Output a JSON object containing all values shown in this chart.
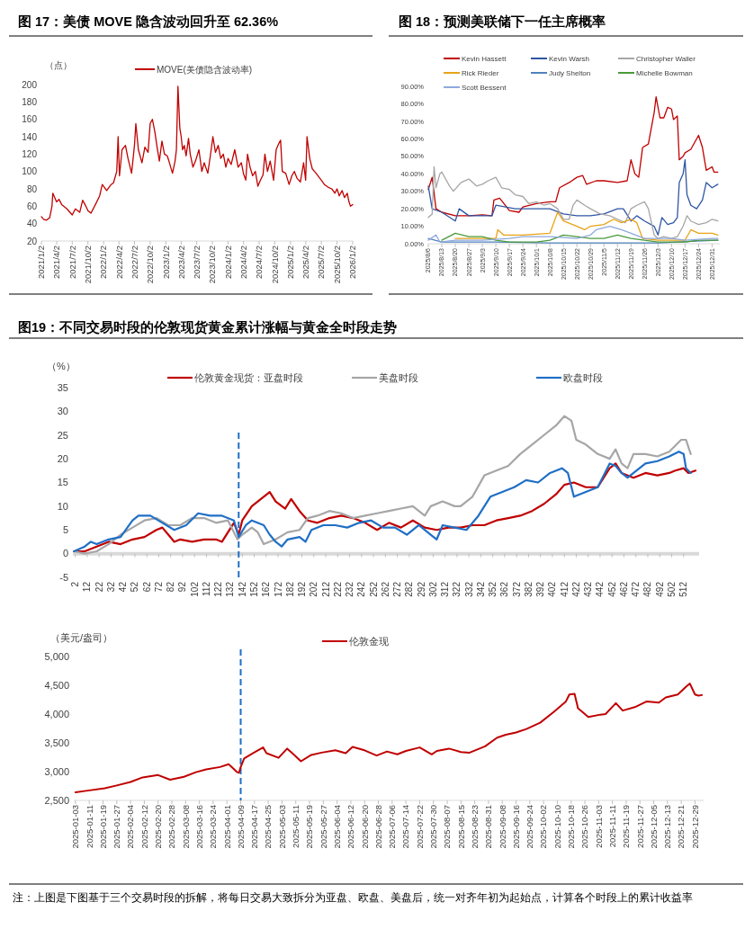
{
  "chart_data": [
    {
      "type": "line",
      "title": "图 17：美债 MOVE 隐含波动回升至 62.36%",
      "ylabel": "（点）",
      "legend": "top",
      "x": [
        "2021-01-02",
        "2021-01-15",
        "2021-02-01",
        "2021-02-20",
        "2021-03-05",
        "2021-03-10",
        "2021-04-01",
        "2021-04-15",
        "2021-05-01",
        "2021-06-01",
        "2021-07-02",
        "2021-07-20",
        "2021-08-15",
        "2021-09-01",
        "2021-09-20",
        "2021-10-02",
        "2021-10-20",
        "2021-11-15",
        "2021-12-10",
        "2021-12-25",
        "2022-01-20",
        "2022-02-15",
        "2022-03-01",
        "2022-03-20",
        "2022-03-28",
        "2022-04-05",
        "2022-04-20",
        "2022-05-10",
        "2022-05-25",
        "2022-06-15",
        "2022-07-02",
        "2022-07-10",
        "2022-07-25",
        "2022-08-15",
        "2022-09-01",
        "2022-09-20",
        "2022-10-02",
        "2022-10-15",
        "2022-10-30",
        "2022-11-10",
        "2022-11-25",
        "2022-12-10",
        "2022-12-25",
        "2023-01-10",
        "2023-01-20",
        "2023-02-10",
        "2023-02-25",
        "2023-03-05",
        "2023-03-14",
        "2023-03-25",
        "2023-04-02",
        "2023-04-10",
        "2023-04-20",
        "2023-05-01",
        "2023-05-15",
        "2023-05-25",
        "2023-06-10",
        "2023-06-25",
        "2023-07-15",
        "2023-08-01",
        "2023-08-15",
        "2023-09-05",
        "2023-09-20",
        "2023-10-05",
        "2023-10-20",
        "2023-11-05",
        "2023-11-20",
        "2023-12-05",
        "2023-12-20",
        "2024-01-02",
        "2024-01-20",
        "2024-02-10",
        "2024-03-01",
        "2024-03-20",
        "2024-04-02",
        "2024-04-15",
        "2024-04-25",
        "2024-05-10",
        "2024-05-25",
        "2024-06-10",
        "2024-06-25",
        "2024-07-10",
        "2024-07-25",
        "2024-08-05",
        "2024-08-20",
        "2024-09-05",
        "2024-09-25",
        "2024-10-10",
        "2024-10-25",
        "2024-11-05",
        "2024-11-15",
        "2024-12-05",
        "2024-12-25",
        "2025-01-10",
        "2025-01-25",
        "2025-02-10",
        "2025-03-01",
        "2025-03-20",
        "2025-04-01",
        "2025-04-09",
        "2025-04-25",
        "2025-05-10",
        "2025-06-01",
        "2025-07-02",
        "2025-07-20",
        "2025-08-10",
        "2025-09-01",
        "2025-09-20",
        "2025-10-02",
        "2025-10-15",
        "2025-11-01",
        "2025-11-15",
        "2025-12-01",
        "2025-12-10",
        "2025-12-20",
        "2026-01-02"
      ],
      "series": [
        {
          "name": "MOVE(美债隐含波动率)",
          "color": "#c00000",
          "values": [
            48,
            45,
            44,
            47,
            60,
            75,
            65,
            68,
            62,
            57,
            50,
            57,
            53,
            67,
            60,
            55,
            52,
            62,
            72,
            85,
            78,
            85,
            87,
            100,
            140,
            95,
            125,
            130,
            115,
            98,
            130,
            155,
            125,
            110,
            128,
            122,
            155,
            160,
            145,
            130,
            112,
            135,
            120,
            118,
            112,
            98,
            112,
            125,
            198,
            150,
            140,
            125,
            130,
            118,
            138,
            120,
            105,
            112,
            125,
            100,
            110,
            98,
            118,
            140,
            122,
            130,
            115,
            120,
            105,
            115,
            108,
            125,
            105,
            110,
            97,
            90,
            120,
            105,
            95,
            100,
            83,
            90,
            96,
            120,
            100,
            112,
            90,
            125,
            132,
            136,
            100,
            98,
            85,
            95,
            100,
            92,
            88,
            110,
            90,
            140,
            115,
            103,
            98,
            90,
            85,
            82,
            80,
            75,
            80,
            72,
            78,
            70,
            75,
            66,
            60,
            62
          ]
        }
      ],
      "xlim": [
        "2021-01-02",
        "2026-01-02"
      ],
      "xticks": [
        {
          "value": "2021-01-02",
          "label": "2021/1/2"
        },
        {
          "value": "2021-04-02",
          "label": "2021/4/2"
        },
        {
          "value": "2021-07-02",
          "label": "2021/7/2"
        },
        {
          "value": "2021-10-02",
          "label": "2021/10/2"
        },
        {
          "value": "2022-01-02",
          "label": "2022/1/2"
        },
        {
          "value": "2022-04-02",
          "label": "2022/4/2"
        },
        {
          "value": "2022-07-02",
          "label": "2022/7/2"
        },
        {
          "value": "2022-10-02",
          "label": "2022/10/2"
        },
        {
          "value": "2023-01-02",
          "label": "2023/1/2"
        },
        {
          "value": "2023-04-02",
          "label": "2023/4/2"
        },
        {
          "value": "2023-07-02",
          "label": "2023/7/2"
        },
        {
          "value": "2023-10-02",
          "label": "2023/10/2"
        },
        {
          "value": "2024-01-02",
          "label": "2024/1/2"
        },
        {
          "value": "2024-04-02",
          "label": "2024/4/2"
        },
        {
          "value": "2024-07-02",
          "label": "2024/7/2"
        },
        {
          "value": "2024-10-02",
          "label": "2024/10/2"
        },
        {
          "value": "2025-01-02",
          "label": "2025/1/2"
        },
        {
          "value": "2025-04-02",
          "label": "2025/4/2"
        },
        {
          "value": "2025-07-02",
          "label": "2025/7/2"
        },
        {
          "value": "2025-10-02",
          "label": "2025/10/2"
        },
        {
          "value": "2026-01-02",
          "label": "2026/1/2"
        }
      ],
      "ylim": [
        20,
        200
      ],
      "yticks": [
        20,
        40,
        60,
        80,
        100,
        120,
        140,
        160,
        180,
        200
      ]
    },
    {
      "type": "line",
      "title": "图 18：预测美联储下一任主席概率",
      "legend": "top",
      "series": [
        {
          "name": "Kevin Hassett",
          "color": "#c00000",
          "x": [
            "2025-08-06",
            "2025-08-08",
            "2025-08-10",
            "2025-08-13",
            "2025-08-20",
            "2025-08-27",
            "2025-09-03",
            "2025-09-08",
            "2025-09-09",
            "2025-09-12",
            "2025-09-17",
            "2025-09-22",
            "2025-09-24",
            "2025-10-01",
            "2025-10-08",
            "2025-10-11",
            "2025-10-13",
            "2025-10-18",
            "2025-10-22",
            "2025-10-25",
            "2025-10-27",
            "2025-11-01",
            "2025-11-05",
            "2025-11-12",
            "2025-11-17",
            "2025-11-19",
            "2025-11-21",
            "2025-11-23",
            "2025-11-25",
            "2025-11-28",
            "2025-12-01",
            "2025-12-02",
            "2025-12-04",
            "2025-12-06",
            "2025-12-08",
            "2025-12-10",
            "2025-12-11",
            "2025-12-13",
            "2025-12-14",
            "2025-12-16",
            "2025-12-17",
            "2025-12-20",
            "2025-12-22",
            "2025-12-24",
            "2025-12-26",
            "2025-12-28",
            "2025-12-31",
            "2026-01-01",
            "2026-01-03"
          ],
          "values": [
            31,
            38,
            20,
            18,
            16,
            16,
            16.5,
            16,
            25,
            26,
            19,
            18,
            21,
            23,
            24,
            24,
            32,
            35,
            38,
            39,
            34,
            36,
            36,
            35,
            36,
            48,
            40,
            38,
            55,
            57,
            75,
            84,
            72,
            72,
            78,
            77,
            71,
            73,
            48,
            50,
            52,
            54,
            58,
            62,
            55,
            42,
            44,
            41,
            41
          ]
        },
        {
          "name": "Kevin Warsh",
          "color": "#2f55a4",
          "x": [
            "2025-08-06",
            "2025-08-08",
            "2025-08-13",
            "2025-08-20",
            "2025-08-22",
            "2025-08-27",
            "2025-09-03",
            "2025-09-08",
            "2025-09-10",
            "2025-09-15",
            "2025-09-20",
            "2025-10-01",
            "2025-10-08",
            "2025-10-15",
            "2025-10-22",
            "2025-10-29",
            "2025-11-05",
            "2025-11-12",
            "2025-11-15",
            "2025-11-19",
            "2025-11-22",
            "2025-11-26",
            "2025-12-01",
            "2025-12-03",
            "2025-12-05",
            "2025-12-08",
            "2025-12-11",
            "2025-12-13",
            "2025-12-14",
            "2025-12-16",
            "2025-12-17",
            "2025-12-18",
            "2025-12-20",
            "2025-12-23",
            "2025-12-26",
            "2025-12-28",
            "2025-12-31",
            "2026-01-03"
          ],
          "values": [
            33,
            20,
            18,
            13,
            20,
            16,
            16,
            16,
            22,
            21,
            20,
            20,
            20,
            17,
            16,
            16,
            17,
            20,
            20,
            13,
            16,
            13,
            10,
            5,
            15,
            11,
            12,
            15,
            35,
            40,
            48,
            28,
            22,
            20,
            25,
            35,
            32,
            34
          ]
        },
        {
          "name": "Christopher Waller",
          "color": "#a6a6a6",
          "x": [
            "2025-08-06",
            "2025-08-08",
            "2025-08-09",
            "2025-08-10",
            "2025-08-12",
            "2025-08-13",
            "2025-08-17",
            "2025-08-19",
            "2025-08-23",
            "2025-08-27",
            "2025-08-31",
            "2025-09-03",
            "2025-09-06",
            "2025-09-10",
            "2025-09-13",
            "2025-09-17",
            "2025-09-20",
            "2025-09-24",
            "2025-09-27",
            "2025-10-01",
            "2025-10-05",
            "2025-10-08",
            "2025-10-12",
            "2025-10-15",
            "2025-10-18",
            "2025-10-20",
            "2025-10-22",
            "2025-10-26",
            "2025-10-29",
            "2025-11-03",
            "2025-11-08",
            "2025-11-12",
            "2025-11-16",
            "2025-11-19",
            "2025-11-22",
            "2025-11-26",
            "2025-11-28",
            "2025-12-01",
            "2025-12-03",
            "2025-12-06",
            "2025-12-10",
            "2025-12-13",
            "2025-12-16",
            "2025-12-18",
            "2025-12-20",
            "2025-12-24",
            "2025-12-28",
            "2025-12-31",
            "2026-01-03"
          ],
          "values": [
            15,
            17,
            44,
            32,
            40,
            41,
            33,
            30,
            35,
            37,
            33,
            34,
            36,
            38,
            32,
            31,
            28,
            27,
            23,
            24,
            22,
            23,
            20,
            14,
            14,
            22,
            25,
            22,
            20,
            17,
            16,
            14,
            12,
            20,
            22,
            24,
            20,
            5,
            3,
            4,
            3,
            4,
            10,
            16,
            13,
            11,
            12,
            14,
            13
          ]
        },
        {
          "name": "Rick Rieder",
          "color": "#e8a317",
          "x": [
            "2025-08-20",
            "2025-09-10",
            "2025-09-11",
            "2025-09-14",
            "2025-09-24",
            "2025-10-08",
            "2025-10-12",
            "2025-10-15",
            "2025-10-22",
            "2025-10-26",
            "2025-10-29",
            "2025-11-05",
            "2025-11-10",
            "2025-11-14",
            "2025-11-19",
            "2025-11-22",
            "2025-11-25",
            "2025-12-03",
            "2025-12-10",
            "2025-12-17",
            "2025-12-20",
            "2025-12-24",
            "2025-12-31",
            "2026-01-03"
          ],
          "values": [
            3,
            3,
            8,
            5,
            5,
            6,
            18,
            13,
            10,
            8,
            10,
            11,
            14,
            12,
            14,
            12,
            3,
            2,
            2,
            2,
            8,
            6,
            6,
            5
          ]
        },
        {
          "name": "Judy Shelton",
          "color": "#4f81bd",
          "x": [
            "2025-08-06",
            "2025-08-13",
            "2025-09-10",
            "2025-10-08",
            "2025-11-05",
            "2025-12-03",
            "2026-01-03"
          ],
          "values": [
            3,
            1,
            1,
            0.5,
            0.5,
            0.5,
            2
          ]
        },
        {
          "name": "Michelle Bowman",
          "color": "#4a9a3a",
          "x": [
            "2025-08-13",
            "2025-08-20",
            "2025-08-27",
            "2025-09-03",
            "2025-09-10",
            "2025-09-17",
            "2025-10-01",
            "2025-10-08",
            "2025-10-15",
            "2025-10-22",
            "2025-10-29",
            "2025-11-05",
            "2025-11-12",
            "2025-11-19",
            "2025-11-26",
            "2025-12-03",
            "2025-12-17",
            "2025-12-24",
            "2026-01-03"
          ],
          "values": [
            2,
            6,
            4,
            4,
            2,
            1,
            1,
            2,
            5,
            4,
            3,
            3,
            5,
            3,
            2,
            1,
            1,
            2,
            2
          ]
        },
        {
          "name": "Scott Bessent",
          "color": "#8fa8dc",
          "x": [
            "2025-08-06",
            "2025-08-10",
            "2025-08-12",
            "2025-08-20",
            "2025-09-03",
            "2025-09-17",
            "2025-09-24",
            "2025-10-08",
            "2025-10-22",
            "2025-10-29",
            "2025-11-01",
            "2025-11-08",
            "2025-11-14",
            "2025-11-19",
            "2025-11-26",
            "2025-12-03",
            "2025-12-10",
            "2025-12-17",
            "2025-12-31",
            "2026-01-03"
          ],
          "values": [
            2,
            5,
            1,
            2,
            2,
            3,
            4,
            4,
            3,
            5,
            8,
            10,
            8,
            6,
            3,
            3,
            3,
            2,
            3,
            3
          ]
        }
      ],
      "xlim": [
        "2025-08-06",
        "2026-01-04"
      ],
      "xticks": [
        {
          "value": "2025-08-06",
          "label": "2025/8/6"
        },
        {
          "value": "2025-08-13",
          "label": "2025/8/13"
        },
        {
          "value": "2025-08-20",
          "label": "2025/8/20"
        },
        {
          "value": "2025-08-27",
          "label": "2025/8/27"
        },
        {
          "value": "2025-09-03",
          "label": "2025/9/3"
        },
        {
          "value": "2025-09-10",
          "label": "2025/9/10"
        },
        {
          "value": "2025-09-17",
          "label": "2025/9/17"
        },
        {
          "value": "2025-09-24",
          "label": "2025/9/24"
        },
        {
          "value": "2025-10-01",
          "label": "2025/10/1"
        },
        {
          "value": "2025-10-08",
          "label": "2025/10/8"
        },
        {
          "value": "2025-10-15",
          "label": "2025/10/15"
        },
        {
          "value": "2025-10-22",
          "label": "2025/10/22"
        },
        {
          "value": "2025-10-29",
          "label": "2025/10/29"
        },
        {
          "value": "2025-11-05",
          "label": "2025/11/5"
        },
        {
          "value": "2025-11-12",
          "label": "2025/11/12"
        },
        {
          "value": "2025-11-19",
          "label": "2025/11/19"
        },
        {
          "value": "2025-11-26",
          "label": "2025/11/26"
        },
        {
          "value": "2025-12-03",
          "label": "2025/12/3"
        },
        {
          "value": "2025-12-10",
          "label": "2025/12/10"
        },
        {
          "value": "2025-12-17",
          "label": "2025/12/17"
        },
        {
          "value": "2025-12-24",
          "label": "2025/12/24"
        },
        {
          "value": "2025-12-31",
          "label": "2025/12/31"
        }
      ],
      "ylim": [
        0,
        90
      ],
      "yticks": [
        {
          "value": 0,
          "label": "0.00%"
        },
        {
          "value": 10,
          "label": "10.00%"
        },
        {
          "value": 20,
          "label": "20.00%"
        },
        {
          "value": 30,
          "label": "30.00%"
        },
        {
          "value": 40,
          "label": "40.00%"
        },
        {
          "value": 50,
          "label": "50.00%"
        },
        {
          "value": 60,
          "label": "60.00%"
        },
        {
          "value": 70,
          "label": "70.00%"
        },
        {
          "value": 80,
          "label": "80.00%"
        },
        {
          "value": 90,
          "label": "90.00%"
        }
      ]
    },
    {
      "type": "line",
      "title": "图19：不同交易时段的伦敦现货黄金累计涨幅与黄金全时段走势",
      "ylabel": "（%）",
      "legend": "top",
      "series": [
        {
          "name": "伦敦黄金现货：亚盘时段",
          "color": "#c00000",
          "x": [
            1,
            10,
            20,
            30,
            40,
            50,
            60,
            70,
            75,
            80,
            85,
            90,
            100,
            110,
            120,
            125,
            135,
            139,
            142,
            150,
            160,
            165,
            170,
            178,
            183,
            190,
            197,
            205,
            215,
            225,
            235,
            245,
            255,
            265,
            275,
            285,
            295,
            305,
            315,
            325,
            335,
            345,
            355,
            365,
            375,
            385,
            395,
            405,
            412,
            420,
            430,
            440,
            450,
            455,
            460,
            470,
            480,
            490,
            500,
            505,
            512,
            516,
            522
          ],
          "values": [
            0.5,
            0.5,
            1.5,
            2.5,
            2,
            3,
            3.5,
            5,
            5.5,
            4,
            2.5,
            3,
            2.5,
            3,
            3,
            2.5,
            6.5,
            4,
            7,
            10,
            12,
            13,
            11,
            9.5,
            11.5,
            9,
            7,
            6.5,
            7.5,
            8,
            7.5,
            6.5,
            5,
            6.5,
            5.5,
            7,
            5.5,
            5,
            5.5,
            5.5,
            6,
            6,
            7,
            7.5,
            8,
            9,
            10.5,
            12.5,
            14.5,
            15,
            14,
            14,
            18,
            19,
            17,
            16,
            17,
            16.5,
            17,
            17.5,
            18,
            17,
            17.5
          ]
        },
        {
          "name": "美盘时段",
          "color": "#a6a6a6",
          "x": [
            1,
            10,
            20,
            30,
            40,
            50,
            60,
            70,
            80,
            90,
            100,
            110,
            120,
            130,
            138,
            142,
            150,
            155,
            160,
            170,
            180,
            190,
            197,
            205,
            215,
            225,
            235,
            245,
            255,
            265,
            275,
            285,
            295,
            300,
            310,
            320,
            325,
            335,
            345,
            355,
            365,
            375,
            385,
            395,
            405,
            412,
            418,
            422,
            430,
            440,
            450,
            455,
            460,
            465,
            470,
            480,
            490,
            500,
            510,
            514,
            518
          ],
          "values": [
            0.5,
            0,
            0.5,
            2,
            4,
            5.5,
            7,
            7.5,
            6,
            6,
            7.5,
            7.5,
            6.5,
            7,
            3,
            4,
            5.5,
            4.5,
            2,
            3,
            4.5,
            5,
            7.5,
            8,
            9,
            8.5,
            7.5,
            8,
            8.5,
            9,
            9.5,
            10,
            8,
            10,
            11,
            10,
            10,
            12,
            16.5,
            17.5,
            18.5,
            21,
            23,
            25,
            27,
            29,
            28,
            24,
            23,
            21,
            20,
            22,
            19,
            18,
            21,
            21,
            20.5,
            21.5,
            24,
            24,
            21
          ]
        },
        {
          "name": "欧盘时段",
          "color": "#1f6fc5",
          "x": [
            1,
            10,
            15,
            20,
            30,
            40,
            50,
            55,
            65,
            75,
            85,
            95,
            105,
            115,
            125,
            135,
            139,
            145,
            150,
            160,
            165,
            170,
            175,
            180,
            190,
            195,
            200,
            210,
            220,
            230,
            240,
            250,
            260,
            270,
            280,
            290,
            300,
            305,
            310,
            320,
            330,
            340,
            350,
            360,
            370,
            380,
            390,
            400,
            410,
            415,
            420,
            430,
            440,
            450,
            455,
            460,
            465,
            470,
            480,
            490,
            500,
            508,
            512,
            514,
            518
          ],
          "values": [
            0.5,
            1.5,
            2.5,
            2,
            3,
            3.5,
            7,
            8,
            8,
            6.5,
            5,
            6,
            8.5,
            8,
            8,
            7,
            3.5,
            6,
            7,
            6,
            4,
            2.5,
            1.5,
            3,
            3.5,
            2.5,
            5,
            6,
            6,
            5.5,
            6.5,
            7,
            5.5,
            5.5,
            4,
            6,
            4,
            3,
            6,
            5.5,
            5,
            8,
            12,
            13,
            14,
            15.5,
            15,
            17,
            18,
            17,
            12,
            13,
            14,
            19,
            18.5,
            17,
            16,
            17,
            19,
            19.5,
            20.5,
            21.5,
            21,
            18,
            17
          ]
        }
      ],
      "xlim": [
        0,
        525
      ],
      "xticks": [
        2,
        12,
        22,
        32,
        42,
        52,
        62,
        72,
        82,
        92,
        102,
        112,
        122,
        132,
        142,
        152,
        162,
        172,
        182,
        192,
        202,
        212,
        222,
        232,
        242,
        252,
        262,
        272,
        282,
        292,
        302,
        312,
        322,
        332,
        342,
        352,
        362,
        372,
        382,
        392,
        402,
        412,
        422,
        432,
        442,
        452,
        462,
        472,
        482,
        492,
        502,
        512
      ],
      "ylim": [
        -5,
        35
      ],
      "yticks": [
        -5,
        0,
        5,
        10,
        15,
        20,
        25,
        30,
        35
      ],
      "ref_lines": [
        {
          "axis": "x",
          "value": 139,
          "color": "#1f6fc5",
          "line_style": "dashed"
        }
      ]
    },
    {
      "type": "line",
      "ylabel": "（美元/盎司）",
      "legend": "top",
      "x": [
        "2025-01-03",
        "2025-01-10",
        "2025-01-20",
        "2025-01-27",
        "2025-02-04",
        "2025-02-11",
        "2025-02-20",
        "2025-02-27",
        "2025-03-07",
        "2025-03-14",
        "2025-03-20",
        "2025-03-28",
        "2025-04-02",
        "2025-04-03",
        "2025-04-07",
        "2025-04-08",
        "2025-04-09",
        "2025-04-11",
        "2025-04-16",
        "2025-04-22",
        "2025-04-24",
        "2025-05-01",
        "2025-05-06",
        "2025-05-09",
        "2025-05-14",
        "2025-05-20",
        "2025-05-26",
        "2025-06-03",
        "2025-06-09",
        "2025-06-13",
        "2025-06-20",
        "2025-06-27",
        "2025-07-03",
        "2025-07-09",
        "2025-07-14",
        "2025-07-22",
        "2025-07-29",
        "2025-08-01",
        "2025-08-08",
        "2025-08-15",
        "2025-08-20",
        "2025-08-29",
        "2025-09-05",
        "2025-09-10",
        "2025-09-16",
        "2025-09-22",
        "2025-09-30",
        "2025-10-08",
        "2025-10-15",
        "2025-10-17",
        "2025-10-20",
        "2025-10-22",
        "2025-10-28",
        "2025-11-04",
        "2025-11-07",
        "2025-11-13",
        "2025-11-17",
        "2025-11-24",
        "2025-12-01",
        "2025-12-08",
        "2025-12-12",
        "2025-12-19",
        "2025-12-24",
        "2025-12-26",
        "2025-12-29",
        "2025-12-31",
        "2026-01-02"
      ],
      "series": [
        {
          "name": "伦敦金现",
          "color": "#c00000",
          "values": [
            2640,
            2670,
            2710,
            2760,
            2820,
            2900,
            2940,
            2860,
            2910,
            2990,
            3040,
            3080,
            3130,
            3100,
            2990,
            2980,
            3080,
            3230,
            3320,
            3420,
            3320,
            3240,
            3400,
            3320,
            3180,
            3290,
            3330,
            3370,
            3320,
            3430,
            3370,
            3280,
            3350,
            3300,
            3360,
            3420,
            3300,
            3360,
            3400,
            3340,
            3330,
            3440,
            3590,
            3640,
            3680,
            3740,
            3850,
            4040,
            4220,
            4340,
            4350,
            4100,
            3950,
            3990,
            4000,
            4190,
            4060,
            4120,
            4220,
            4200,
            4290,
            4340,
            4480,
            4530,
            4340,
            4320,
            4330
          ]
        }
      ],
      "xlim": [
        "2025-01-02",
        "2026-01-03"
      ],
      "xticks": [
        "2025-01-03",
        "2025-01-11",
        "2025-01-19",
        "2025-01-27",
        "2025-02-04",
        "2025-02-12",
        "2025-02-20",
        "2025-02-28",
        "2025-03-08",
        "2025-03-16",
        "2025-03-24",
        "2025-04-01",
        "2025-04-09",
        "2025-04-17",
        "2025-04-25",
        "2025-05-03",
        "2025-05-11",
        "2025-05-19",
        "2025-05-27",
        "2025-06-04",
        "2025-06-12",
        "2025-06-20",
        "2025-06-28",
        "2025-07-06",
        "2025-07-14",
        "2025-07-22",
        "2025-07-30",
        "2025-08-07",
        "2025-08-15",
        "2025-08-23",
        "2025-08-31",
        "2025-09-08",
        "2025-09-16",
        "2025-09-24",
        "2025-10-02",
        "2025-10-10",
        "2025-10-18",
        "2025-10-26",
        "2025-11-03",
        "2025-11-11",
        "2025-11-19",
        "2025-11-27",
        "2025-12-05",
        "2025-12-13",
        "2025-12-21",
        "2025-12-29"
      ],
      "ylim": [
        2500,
        5000
      ],
      "yticks": [
        {
          "value": 2500,
          "label": "2,500"
        },
        {
          "value": 3000,
          "label": "3,000"
        },
        {
          "value": 3500,
          "label": "3,500"
        },
        {
          "value": 4000,
          "label": "4,000"
        },
        {
          "value": 4500,
          "label": "4,500"
        },
        {
          "value": 5000,
          "label": "5,000"
        }
      ],
      "ref_lines": [
        {
          "axis": "x",
          "value": "2025-04-09",
          "color": "#1f6fc5",
          "line_style": "dashed"
        }
      ],
      "annotations": [
        "注：上图是下图基于三个交易时段的拆解，将每日交易大致拆分为亚盘、欧盘、美盘后，统一对齐年初为起始点，计算各个时段上的累计收益率"
      ]
    }
  ]
}
